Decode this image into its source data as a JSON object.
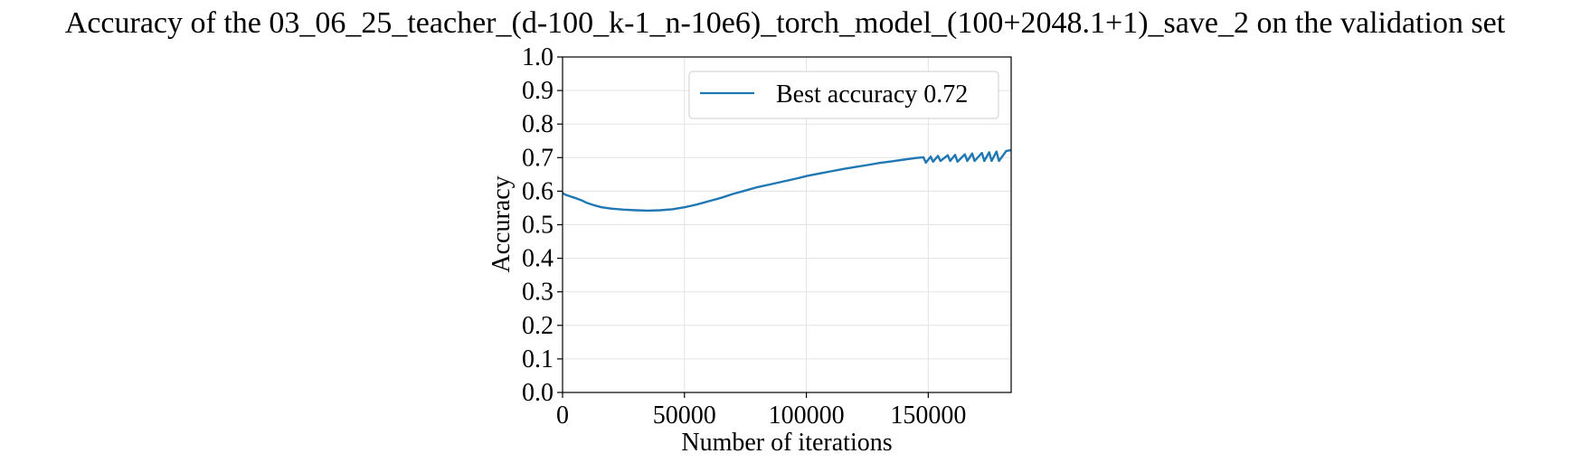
{
  "chart_data": {
    "type": "line",
    "title": "Accuracy of the 03_06_25_teacher_(d-100_k-1_n-10e6)_torch_model_(100+2048.1+1)_save_2 on the validation set",
    "xlabel": "Number of iterations",
    "ylabel": "Accuracy",
    "xlim": [
      0,
      184000
    ],
    "ylim": [
      0.0,
      1.0
    ],
    "x_ticks": [
      0,
      50000,
      100000,
      150000
    ],
    "x_tick_labels": [
      "0",
      "50000",
      "100000",
      "150000"
    ],
    "y_ticks": [
      0.0,
      0.1,
      0.2,
      0.3,
      0.4,
      0.5,
      0.6,
      0.7,
      0.8,
      0.9,
      1.0
    ],
    "y_tick_labels": [
      "0.0",
      "0.1",
      "0.2",
      "0.3",
      "0.4",
      "0.5",
      "0.6",
      "0.7",
      "0.8",
      "0.9",
      "1.0"
    ],
    "grid": true,
    "legend_position": "top-right",
    "series": [
      {
        "name": "Best accuracy 0.72",
        "color": "#1f77b4",
        "x": [
          0,
          1000,
          3000,
          5000,
          8000,
          10000,
          13000,
          16000,
          20000,
          25000,
          30000,
          35000,
          40000,
          45000,
          50000,
          55000,
          60000,
          65000,
          70000,
          75000,
          80000,
          85000,
          90000,
          95000,
          100000,
          105000,
          110000,
          115000,
          120000,
          125000,
          130000,
          135000,
          140000,
          145000,
          148000,
          149000,
          151000,
          152000,
          154000,
          155000,
          158000,
          159000,
          161000,
          162000,
          165000,
          166000,
          168000,
          169000,
          172000,
          173000,
          175000,
          176000,
          178000,
          179000,
          182000,
          184000
        ],
        "y": [
          0.595,
          0.59,
          0.585,
          0.58,
          0.572,
          0.565,
          0.558,
          0.552,
          0.548,
          0.545,
          0.543,
          0.542,
          0.543,
          0.546,
          0.552,
          0.56,
          0.57,
          0.58,
          0.592,
          0.602,
          0.612,
          0.62,
          0.628,
          0.636,
          0.645,
          0.652,
          0.659,
          0.666,
          0.672,
          0.678,
          0.684,
          0.689,
          0.694,
          0.699,
          0.701,
          0.685,
          0.703,
          0.688,
          0.705,
          0.69,
          0.707,
          0.69,
          0.708,
          0.688,
          0.71,
          0.69,
          0.712,
          0.69,
          0.714,
          0.69,
          0.716,
          0.69,
          0.718,
          0.69,
          0.72,
          0.722
        ]
      }
    ]
  }
}
